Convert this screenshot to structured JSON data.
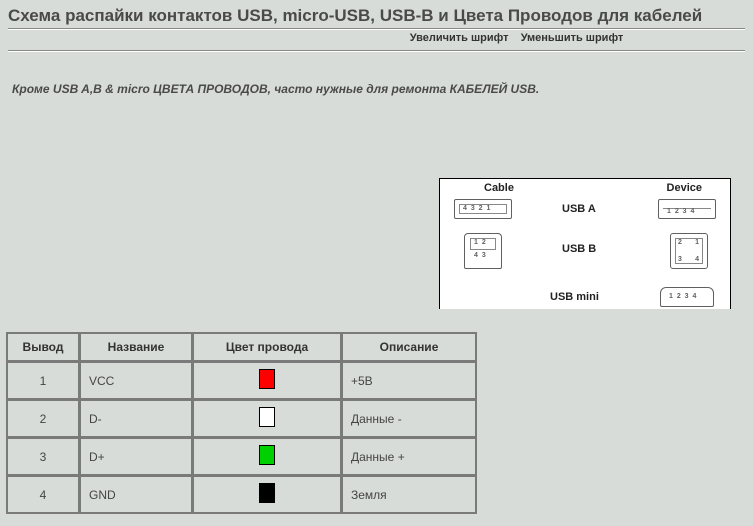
{
  "title": "Схема распайки контактов USB, micro-USB, USB-B и Цвета Проводов для кабелей",
  "controls": {
    "zoom_in": "Увеличить шрифт",
    "zoom_out": "Уменьшить шрифт"
  },
  "intro": "Кроме USB A,B & micro ЦВЕТА ПРОВОДОВ, часто нужные для ремонта КАБЕЛЕЙ USB.",
  "diagram": {
    "header_cable": "Cable",
    "header_device": "Device",
    "row_usb_a": "USB A",
    "row_usb_b": "USB B",
    "row_usb_mini": "USB mini",
    "pins_a": "4 3 2 1",
    "pins_a_dev": "1 2 3 4",
    "pins_b_left": "1 2",
    "pins_b_right": "4 3",
    "pins_b_dev_tl": "2",
    "pins_b_dev_tr": "1",
    "pins_b_dev_bl": "3",
    "pins_b_dev_br": "4",
    "pins_mini": "1 2 3 4"
  },
  "table": {
    "headers": {
      "pin": "Вывод",
      "name": "Название",
      "color": "Цвет провода",
      "desc": "Описание"
    },
    "rows": [
      {
        "pin": "1",
        "name": "VCC",
        "color": "#ff0000",
        "swatch_border": "#000000",
        "desc": "+5В"
      },
      {
        "pin": "2",
        "name": "D-",
        "color": "#ffffff",
        "swatch_border": "#000000",
        "desc": "Данные -"
      },
      {
        "pin": "3",
        "name": "D+",
        "color": "#00d000",
        "swatch_border": "#000000",
        "desc": "Данные +"
      },
      {
        "pin": "4",
        "name": "GND",
        "color": "#000000",
        "swatch_border": "#000000",
        "desc": "Земля"
      }
    ]
  },
  "colors": {
    "page_bg": "#d8dcd8",
    "title_text": "#4a4a4a",
    "table_border": "#7a7a7a",
    "diagram_bg": "#ffffff"
  }
}
